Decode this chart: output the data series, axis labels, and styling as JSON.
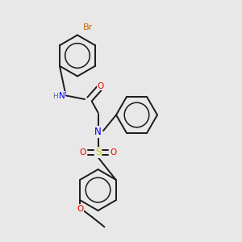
{
  "background_color": "#e8e8e8",
  "bond_color": "#1a1a1a",
  "colors": {
    "N": "#0000ee",
    "O": "#ee0000",
    "S": "#cccc00",
    "Br": "#cc6600",
    "H": "#666688",
    "C": "#1a1a1a"
  },
  "font_size": 7.5,
  "bond_width": 1.4
}
